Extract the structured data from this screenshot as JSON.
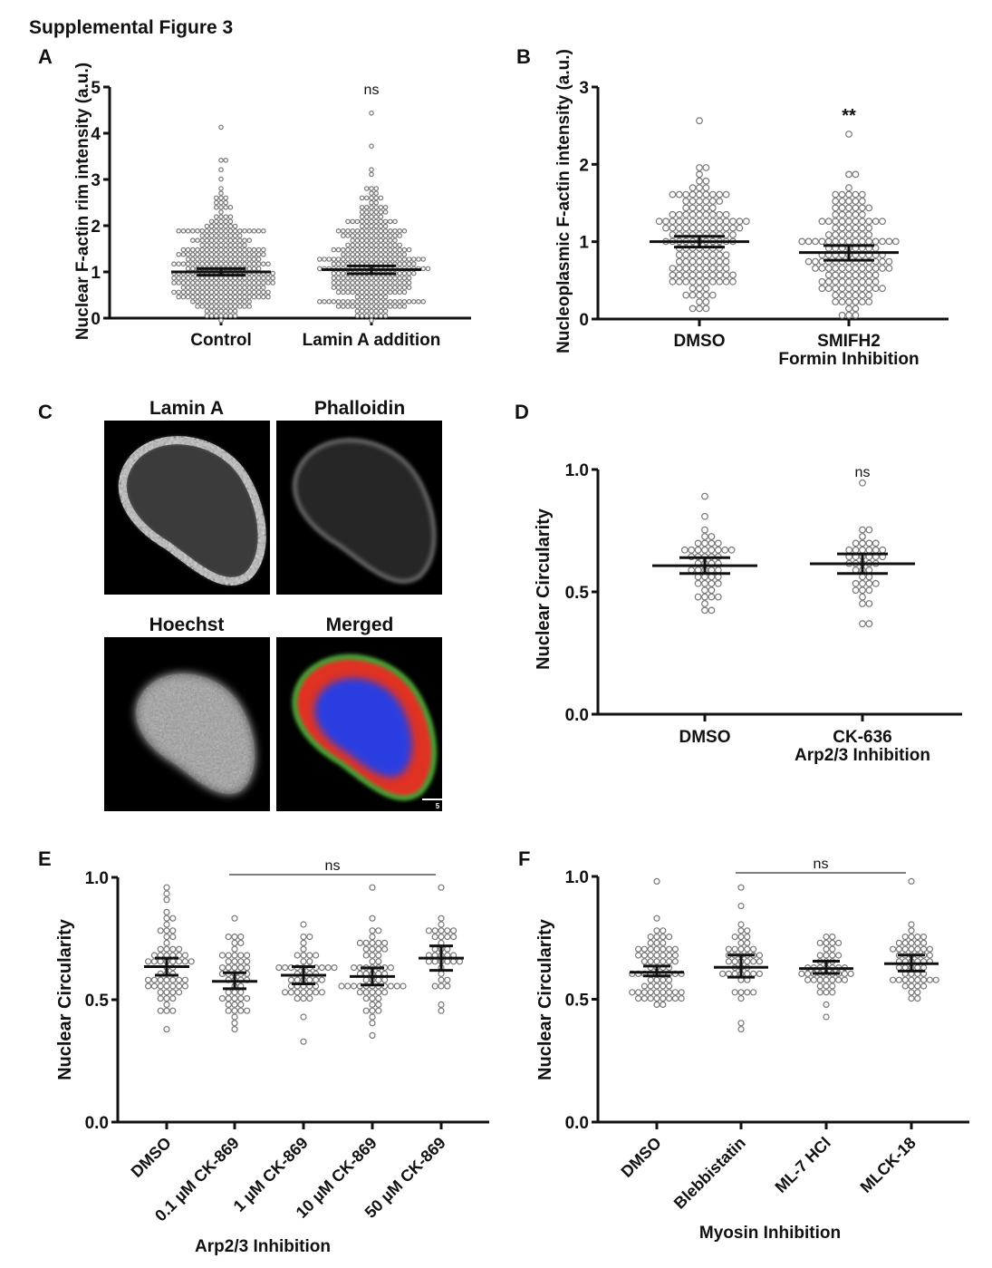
{
  "figure_title": "Supplemental Figure 3",
  "panel_letters": [
    "A",
    "B",
    "C",
    "D",
    "E",
    "F"
  ],
  "images": {
    "titles": [
      {
        "text": "Lamin A",
        "color": "#e8262b"
      },
      {
        "text": "Phalloidin",
        "color": "#3fb54a"
      },
      {
        "text": "Hoechst",
        "color": "#2b7fc4"
      },
      {
        "text": "Merged",
        "color": "#222222"
      }
    ],
    "scale_bar": "5 µm"
  },
  "chart_data": [
    {
      "panel": "A",
      "type": "scatter",
      "ylabel": "Nuclear F-actin rim intensity (a.u.)",
      "ylim": [
        0,
        5
      ],
      "yticks": [
        "0",
        "1",
        "2",
        "3",
        "4",
        "5"
      ],
      "categories": [
        "Control",
        "Lamin A addition"
      ],
      "sublabels": [
        "",
        ""
      ],
      "xlabel": "",
      "groups": [
        {
          "mean": 1.0,
          "error": [
            0.93,
            1.07
          ],
          "min": 0.0,
          "max": 4.13,
          "n": 340
        },
        {
          "mean": 1.05,
          "error": [
            0.96,
            1.13
          ],
          "min": 0.0,
          "max": 4.48,
          "n": 340
        }
      ],
      "annotations": [
        {
          "text": "ns",
          "category": 1
        }
      ],
      "significance_bar": null,
      "marker_color": "#777777"
    },
    {
      "panel": "B",
      "type": "scatter",
      "ylabel": "Nucleoplasmic F-actin intensity (a.u.)",
      "ylim": [
        0,
        3
      ],
      "yticks": [
        "0",
        "1",
        "2",
        "3"
      ],
      "categories": [
        "DMSO",
        "SMIFH2"
      ],
      "sublabels": [
        "",
        "Formin Inhibition"
      ],
      "xlabel": "",
      "groups": [
        {
          "mean": 1.0,
          "error": [
            0.93,
            1.07
          ],
          "min": 0.14,
          "max": 2.58,
          "n": 150
        },
        {
          "mean": 0.86,
          "error": [
            0.76,
            0.95
          ],
          "min": 0.04,
          "max": 2.4,
          "n": 150
        }
      ],
      "annotations": [
        {
          "text": "**",
          "category": 1
        }
      ],
      "significance_bar": null,
      "marker_color": "#777777"
    },
    {
      "panel": "D",
      "type": "scatter",
      "ylabel": "Nuclear Circularity",
      "ylim": [
        0,
        1
      ],
      "yticks": [
        "0.0",
        "0.5",
        "1.0"
      ],
      "categories": [
        "DMSO",
        "CK-636"
      ],
      "sublabels": [
        "",
        "Arp2/3 Inhibition"
      ],
      "xlabel": "",
      "groups": [
        {
          "mean": 0.607,
          "error": [
            0.575,
            0.64
          ],
          "min": 0.42,
          "max": 0.88,
          "n": 48
        },
        {
          "mean": 0.615,
          "error": [
            0.575,
            0.655
          ],
          "min": 0.36,
          "max": 0.94,
          "n": 42
        }
      ],
      "annotations": [
        {
          "text": "ns",
          "category": 1
        }
      ],
      "significance_bar": null,
      "marker_color": "#777777"
    },
    {
      "panel": "E",
      "type": "scatter",
      "ylabel": "Nuclear Circularity",
      "ylim": [
        0,
        1
      ],
      "yticks": [
        "0.0",
        "0.5",
        "1.0"
      ],
      "categories": [
        "DMSO",
        "0.1 µM CK-869",
        "1 µM CK-869",
        "10 µM CK-869",
        "50 µM CK-869"
      ],
      "xlabel": "Arp2/3 Inhibition",
      "groups": [
        {
          "mean": 0.635,
          "error": [
            0.6,
            0.67
          ],
          "min": 0.39,
          "max": 0.96,
          "n": 62
        },
        {
          "mean": 0.575,
          "error": [
            0.545,
            0.61
          ],
          "min": 0.38,
          "max": 0.84,
          "n": 50
        },
        {
          "mean": 0.6,
          "error": [
            0.565,
            0.635
          ],
          "min": 0.32,
          "max": 0.82,
          "n": 48
        },
        {
          "mean": 0.595,
          "error": [
            0.56,
            0.63
          ],
          "min": 0.36,
          "max": 0.97,
          "n": 62
        },
        {
          "mean": 0.67,
          "error": [
            0.62,
            0.72
          ],
          "min": 0.46,
          "max": 0.97,
          "n": 36
        }
      ],
      "annotations": [],
      "significance_bar": {
        "from": 1,
        "to": 4,
        "text": "ns"
      },
      "marker_color": "#777777"
    },
    {
      "panel": "F",
      "type": "scatter",
      "ylabel": "Nuclear Circularity",
      "ylim": [
        0,
        1
      ],
      "yticks": [
        "0.0",
        "0.5",
        "1.0"
      ],
      "categories": [
        "DMSO",
        "Blebbistatin",
        "ML-7 HCl",
        "MLCK-18"
      ],
      "xlabel": "Myosin Inhibition",
      "groups": [
        {
          "mean": 0.61,
          "error": [
            0.595,
            0.635
          ],
          "min": 0.48,
          "max": 0.98,
          "n": 72
        },
        {
          "mean": 0.63,
          "error": [
            0.59,
            0.68
          ],
          "min": 0.39,
          "max": 0.96,
          "n": 46
        },
        {
          "mean": 0.625,
          "error": [
            0.605,
            0.655
          ],
          "min": 0.44,
          "max": 0.76,
          "n": 46
        },
        {
          "mean": 0.645,
          "error": [
            0.615,
            0.68
          ],
          "min": 0.5,
          "max": 0.98,
          "n": 56
        }
      ],
      "annotations": [],
      "significance_bar": {
        "from": 1,
        "to": 3,
        "text": "ns"
      },
      "marker_color": "#777777"
    }
  ]
}
